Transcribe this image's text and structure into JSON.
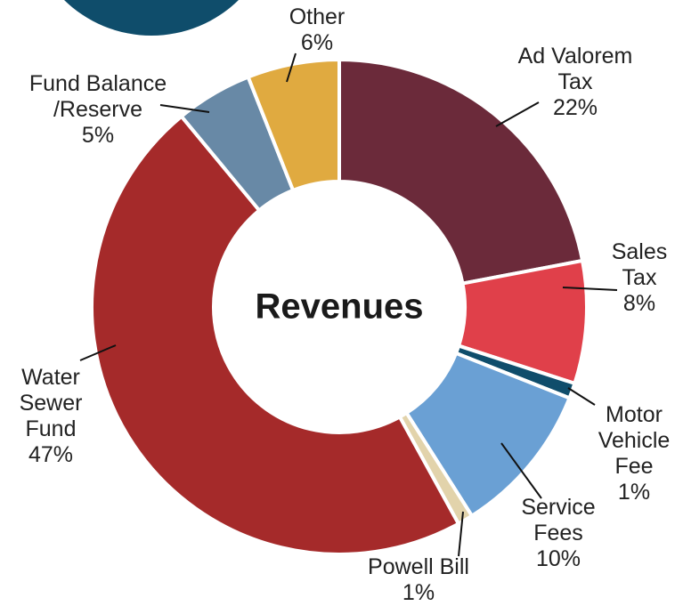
{
  "chart_data": {
    "type": "donut",
    "center_label": "Revenues",
    "categories": [
      "Ad Valorem Tax",
      "Sales Tax",
      "Motor Vehicle Fee",
      "Service Fees",
      "Powell Bill",
      "Water Sewer Fund",
      "Fund Balance /Reserve",
      "Other"
    ],
    "values": [
      22,
      8,
      1,
      10,
      1,
      47,
      5,
      6
    ],
    "value_labels": [
      "22%",
      "8%",
      "1%",
      "10%",
      "1%",
      "47%",
      "5%",
      "6%"
    ],
    "colors": [
      "#6b2a3a",
      "#e0404a",
      "#0f4d6b",
      "#6aa0d4",
      "#e2d3ab",
      "#a52a2a",
      "#6889a6",
      "#e0aa40"
    ]
  }
}
